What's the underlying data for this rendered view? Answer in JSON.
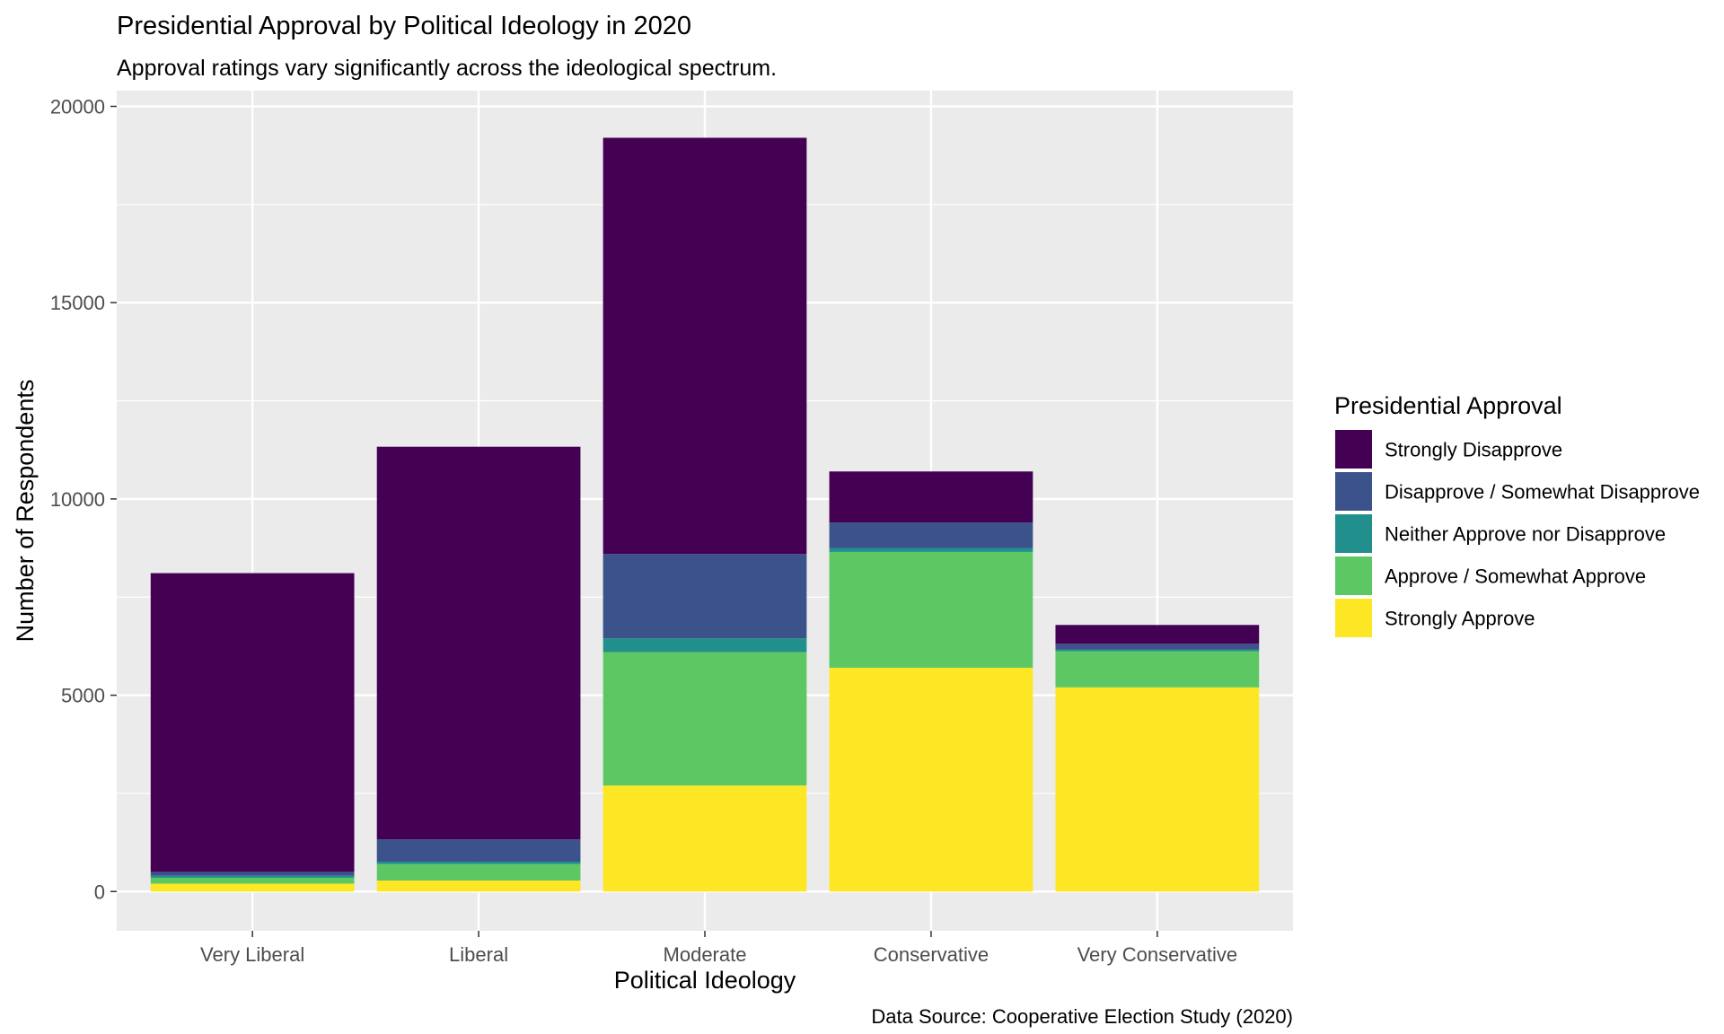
{
  "chart_data": {
    "type": "bar",
    "stacked": true,
    "title": "Presidential Approval by Political Ideology in 2020",
    "subtitle": "Approval ratings vary significantly across the ideological spectrum.",
    "xlabel": "Political Ideology",
    "ylabel": "Number of Respondents",
    "caption": "Data Source: Cooperative Election Study (2020)",
    "categories": [
      "Very Liberal",
      "Liberal",
      "Moderate",
      "Conservative",
      "Very Conservative"
    ],
    "ylim": [
      -1000,
      20400
    ],
    "yticks": [
      0,
      5000,
      10000,
      15000,
      20000
    ],
    "grid": true,
    "legend": {
      "title": "Presidential Approval",
      "position": "right"
    },
    "series": [
      {
        "name": "Strongly Approve",
        "color": "#FDE725",
        "values": [
          200,
          280,
          2700,
          5700,
          5200
        ]
      },
      {
        "name": "Approve / Somewhat Approve",
        "color": "#5DC863",
        "values": [
          150,
          420,
          3400,
          2950,
          920
        ]
      },
      {
        "name": "Neither Approve nor Disapprove",
        "color": "#21908C",
        "values": [
          50,
          60,
          350,
          100,
          40
        ]
      },
      {
        "name": "Disapprove / Somewhat Disapprove",
        "color": "#3B528B",
        "values": [
          100,
          570,
          2150,
          650,
          150
        ]
      },
      {
        "name": "Strongly Disapprove",
        "color": "#440154",
        "values": [
          7610,
          10000,
          10600,
          1300,
          480
        ]
      }
    ]
  }
}
